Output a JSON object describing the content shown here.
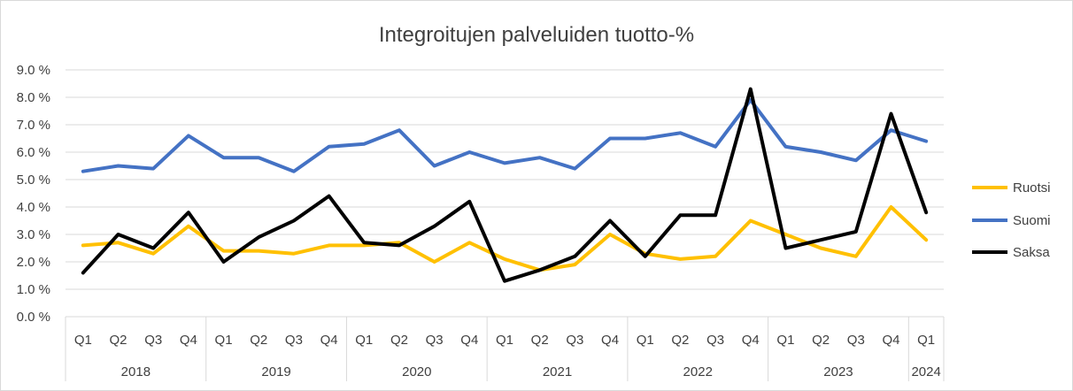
{
  "chart_data": {
    "type": "line",
    "title": "Integroitujen palveluiden tuotto-%",
    "xlabel": "",
    "ylabel": "",
    "ylim": [
      0,
      9
    ],
    "y_ticks": [
      "0.0 %",
      "1.0 %",
      "2.0 %",
      "3.0 %",
      "4.0 %",
      "5.0 %",
      "6.0 %",
      "7.0 %",
      "8.0 %",
      "9.0 %"
    ],
    "grid": true,
    "legend_position": "right",
    "categories": [
      "Q1",
      "Q2",
      "Q3",
      "Q4",
      "Q1",
      "Q2",
      "Q3",
      "Q4",
      "Q1",
      "Q2",
      "Q3",
      "Q4",
      "Q1",
      "Q2",
      "Q3",
      "Q4",
      "Q1",
      "Q2",
      "Q3",
      "Q4",
      "Q1",
      "Q2",
      "Q3",
      "Q4",
      "Q1"
    ],
    "groups": [
      {
        "label": "2018",
        "count": 4
      },
      {
        "label": "2019",
        "count": 4
      },
      {
        "label": "2020",
        "count": 4
      },
      {
        "label": "2021",
        "count": 4
      },
      {
        "label": "2022",
        "count": 4
      },
      {
        "label": "2023",
        "count": 4
      },
      {
        "label": "2024",
        "count": 1
      }
    ],
    "series": [
      {
        "name": "Ruotsi",
        "color": "#ffc000",
        "values": [
          2.6,
          2.7,
          2.3,
          3.3,
          2.4,
          2.4,
          2.3,
          2.6,
          2.6,
          2.7,
          2.0,
          2.7,
          2.1,
          1.7,
          1.9,
          3.0,
          2.3,
          2.1,
          2.2,
          3.5,
          3.0,
          2.5,
          2.2,
          4.0,
          2.8
        ]
      },
      {
        "name": "Suomi",
        "color": "#4472c4",
        "values": [
          5.3,
          5.5,
          5.4,
          6.6,
          5.8,
          5.8,
          5.3,
          6.2,
          6.3,
          6.8,
          5.5,
          6.0,
          5.6,
          5.8,
          5.4,
          6.5,
          6.5,
          6.7,
          6.2,
          7.9,
          6.2,
          6.0,
          5.7,
          6.8,
          6.4
        ]
      },
      {
        "name": "Saksa",
        "color": "#000000",
        "values": [
          1.6,
          3.0,
          2.5,
          3.8,
          2.0,
          2.9,
          3.5,
          4.4,
          2.7,
          2.6,
          3.3,
          4.2,
          1.3,
          1.7,
          2.2,
          3.5,
          2.2,
          3.7,
          3.7,
          8.3,
          2.5,
          2.8,
          3.1,
          7.4,
          3.8
        ]
      }
    ]
  }
}
